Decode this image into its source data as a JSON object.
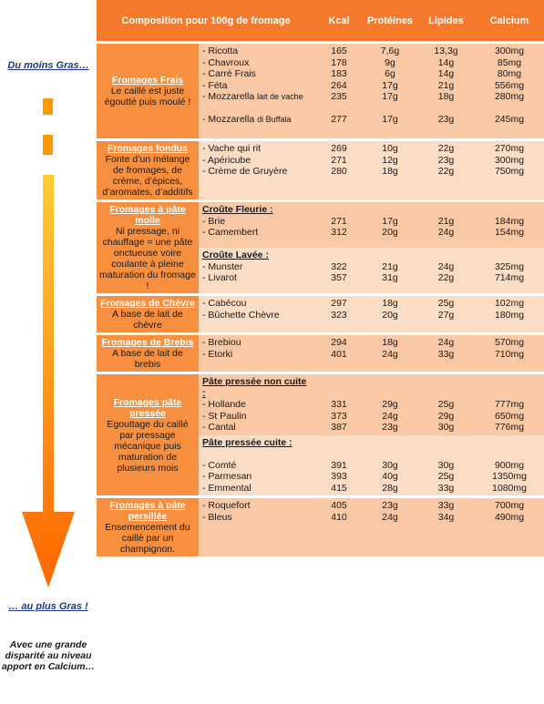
{
  "left": {
    "top_label": "Du moins Gras…",
    "bottom_label": "… au plus Gras !",
    "note": "Avec une grande disparité au niveau apport en Calcium…"
  },
  "colors": {
    "header": "#f77a2c",
    "category": "#f78f3e",
    "row_dark": "#f9c8a4",
    "row_light": "#fbdcc4",
    "arrow_top": "#ffcc33",
    "arrow_bottom": "#ff6600"
  },
  "header": {
    "composition": "Composition pour 100g de fromage",
    "kcal": "Kcal",
    "proteines": "Protéines",
    "lipides": "Lipides",
    "calcium": "Calcium"
  },
  "categories": [
    {
      "name": "Fromages Frais",
      "desc": "Le caillé est juste égoutté puis moulé !",
      "items": [
        {
          "n": "- Ricotta",
          "k": "165",
          "p": "7,6g",
          "l": "13,3g",
          "c": "300mg"
        },
        {
          "n": "- Chavroux",
          "k": "178",
          "p": "9g",
          "l": "14g",
          "c": "85mg"
        },
        {
          "n": "- Carré Frais",
          "k": "183",
          "l": "14g",
          "p": "6g",
          "c": "80mg"
        },
        {
          "n": "- Féta",
          "k": "264",
          "p": "17g",
          "l": "21g",
          "c": "556mg"
        },
        {
          "n": "- Mozzarella lait de vache",
          "k": "235",
          "p": "17g",
          "l": "18g",
          "c": "280mg"
        },
        {
          "n": "- Mozzarella di Buffala",
          "k": "277",
          "p": "17g",
          "l": "23g",
          "c": "245mg"
        }
      ]
    },
    {
      "name": "Fromages fondus",
      "desc": "Fonte d’un mélange de fromages, de crème, d’épices, d’aromates, d’additifs",
      "items": [
        {
          "n": "- Vache qui rit",
          "k": "269",
          "p": "10g",
          "l": "22g",
          "c": "270mg"
        },
        {
          "n": "- Apéricube",
          "k": "271",
          "p": "12g",
          "l": "23g",
          "c": "300mg"
        },
        {
          "n": "- Crème de Gruyère",
          "k": "280",
          "p": "18g",
          "l": "22g",
          "c": "750mg"
        }
      ]
    },
    {
      "name": "Fromages à pâte molle",
      "desc": "Ni pressage, ni chauffage = une pâte onctueuse voire coulante à pleine maturation du fromage !",
      "groups": [
        {
          "sub": "Croûte Fleurie :",
          "items": [
            {
              "n": "- Brie",
              "k": "271",
              "p": "17g",
              "l": "21g",
              "c": "184mg"
            },
            {
              "n": "- Camembert",
              "k": "312",
              "p": "20g",
              "l": "24g",
              "c": "154mg"
            }
          ]
        },
        {
          "sub": "Croûte Lavée :",
          "items": [
            {
              "n": "- Munster",
              "k": "322",
              "p": "21g",
              "l": "24g",
              "c": "325mg"
            },
            {
              "n": "- Livarot",
              "k": "357",
              "p": "31g",
              "l": "22g",
              "c": "714mg"
            }
          ]
        }
      ]
    },
    {
      "name": "Fromages de Chèvre",
      "desc": "A base de lait de chèvre",
      "items": [
        {
          "n": "- Cabécou",
          "k": "297",
          "p": "18g",
          "l": "25g",
          "c": "102mg"
        },
        {
          "n": "- Bûchette Chèvre",
          "k": "323",
          "p": "20g",
          "l": "27g",
          "c": "180mg"
        }
      ]
    },
    {
      "name": "Fromages de Brebis",
      "desc": "A base de lait de brebis",
      "items": [
        {
          "n": "- Brebiou",
          "k": "294",
          "p": "18g",
          "l": "24g",
          "c": "570mg"
        },
        {
          "n": "- Etorki",
          "k": "401",
          "p": "24g",
          "l": "33g",
          "c": "710mg"
        }
      ]
    },
    {
      "name": "Fromages pâte pressée",
      "desc": "Egouttage du caillé par pressage mécanique puis maturation de plusieurs mois",
      "groups": [
        {
          "sub": "Pâte pressée non cuite :",
          "items": [
            {
              "n": "- Hollande",
              "k": "331",
              "p": "29g",
              "l": "25g",
              "c": "777mg"
            },
            {
              "n": "- St Paulin",
              "k": "373",
              "p": "24g",
              "l": "29g",
              "c": "650mg"
            },
            {
              "n": "- Cantal",
              "k": "387",
              "p": "23g",
              "l": "30g",
              "c": "776mg"
            }
          ]
        },
        {
          "sub": "Pâte pressée cuite :",
          "items": [
            {
              "n": "- Comté",
              "k": "391",
              "p": "30g",
              "l": "30g",
              "c": "900mg"
            },
            {
              "n": "- Parmesan",
              "k": "393",
              "p": "40g",
              "l": "25g",
              "c": "1350mg"
            },
            {
              "n": "- Emmental",
              "k": "415",
              "p": "28g",
              "l": "33g",
              "c": "1080mg"
            }
          ]
        }
      ]
    },
    {
      "name": "Fromages à pâte persillée",
      "desc": "Ensemencement du caillé par un champignon.",
      "items": [
        {
          "n": "- Roquefort",
          "k": "405",
          "p": "23g",
          "l": "33g",
          "c": "700mg"
        },
        {
          "n": "- Bleus",
          "k": "410",
          "p": "24g",
          "l": "34g",
          "c": "490mg"
        }
      ]
    }
  ]
}
